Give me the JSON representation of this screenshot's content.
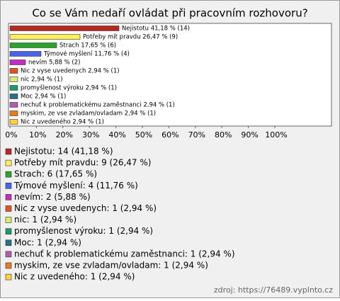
{
  "chart_data": {
    "type": "bar",
    "orientation": "horizontal",
    "title": "Co se Vám nedaří ovládat při pracovním rozhovoru?",
    "categories": [
      "Nejistotu",
      "Potřeby mít pravdu",
      "Strach",
      "Týmové myšlení",
      "nevím",
      "Nic z vyse uvedenych",
      "nic",
      "promyšlenost výroku",
      "Moc",
      "nechuť k problematickému zaměstnanci",
      "myskim, ze vse zvladam/ovladam",
      "Nic z uvedeného"
    ],
    "values": [
      41.18,
      26.47,
      17.65,
      11.76,
      5.88,
      2.94,
      2.94,
      2.94,
      2.94,
      2.94,
      2.94,
      2.94
    ],
    "value_labels": [
      "Nejistotu 41,18 % (14)",
      "Potřeby mít pravdu 26,47 % (9)",
      "Strach 17,65 % (6)",
      "Týmové myšlení 11,76 % (4)",
      "nevím 5,88 % (2)",
      "Nic z vyse uvedenych 2,94 % (1)",
      "nic 2,94 % (1)",
      "promyšlenost výroku 2,94 % (1)",
      "Moc 2,94 % (1)",
      "nechuť k problematickému zaměstnanci 2,94 % (1)",
      "myskim, ze vse zvladam/ovladam 2,94 % (1)",
      "Nic z uvedeného 2,94 % (1)"
    ],
    "legend_labels": [
      "Nejistotu: 14 (41,18 %)",
      "Potřeby mít pravdu: 9 (26,47 %)",
      "Strach: 6 (17,65 %)",
      "Týmové myšlení: 4 (11,76 %)",
      "nevím: 2 (5,88 %)",
      "Nic z vyse uvedenych: 1 (2,94 %)",
      "nic: 1 (2,94 %)",
      "promyšlenost výroku: 1 (2,94 %)",
      "Moc: 1 (2,94 %)",
      "nechuť k problematickému zaměstnanci: 1 (2,94 %)",
      "myskim, ze vse zvladam/ovladam: 1 (2,94 %)",
      "Nic z uvedeného: 1 (2,94 %)"
    ],
    "colors": [
      "#b8281e",
      "#fff05a",
      "#2aa52a",
      "#4a63e8",
      "#c42ac4",
      "#e8501e",
      "#d6ee6a",
      "#1a9b6a",
      "#2a6e8a",
      "#b45ab4",
      "#ea7a1e",
      "#ffd23a"
    ],
    "xlim": [
      0,
      100
    ],
    "xticks": [
      {
        "value": 0,
        "label": "0%"
      },
      {
        "value": 10,
        "label": "10%"
      },
      {
        "value": 20,
        "label": "20%"
      },
      {
        "value": 30,
        "label": "30%"
      },
      {
        "value": 40,
        "label": "40%"
      },
      {
        "value": 50,
        "label": "50%"
      },
      {
        "value": 60,
        "label": "60%"
      },
      {
        "value": 70,
        "label": "70%"
      },
      {
        "value": 80,
        "label": "80%"
      },
      {
        "value": 90,
        "label": "90%"
      },
      {
        "value": 100,
        "label": "100%"
      }
    ],
    "source": "zdroj: https://76489.vyplnto.cz"
  }
}
